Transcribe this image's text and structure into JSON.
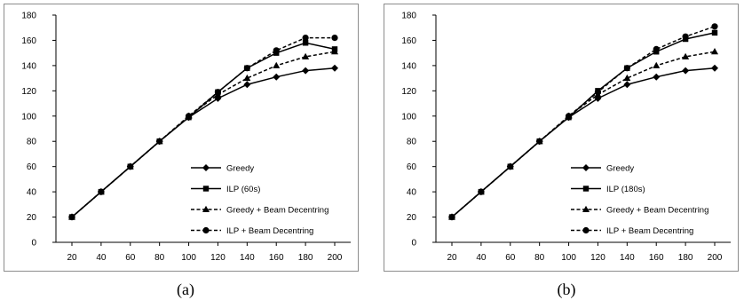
{
  "captions": [
    "(a)",
    "(b)"
  ],
  "chart_data": [
    {
      "type": "line",
      "x": [
        20,
        40,
        60,
        80,
        100,
        120,
        140,
        160,
        180,
        200
      ],
      "xlim": [
        20,
        200
      ],
      "ylim": [
        0,
        180
      ],
      "yticks": [
        0,
        20,
        40,
        60,
        80,
        100,
        120,
        140,
        160,
        180
      ],
      "xticks": [
        20,
        40,
        60,
        80,
        100,
        120,
        140,
        160,
        180,
        200
      ],
      "grid": false,
      "legend_position": "bottom-right",
      "series": [
        {
          "name": "Greedy",
          "marker": "diamond",
          "dash": "solid",
          "values": [
            20,
            40,
            60,
            80,
            99,
            114,
            125,
            131,
            136,
            138
          ]
        },
        {
          "name": "ILP (60s)",
          "marker": "square",
          "dash": "solid",
          "values": [
            20,
            40,
            60,
            80,
            99,
            119,
            138,
            150,
            158,
            153
          ]
        },
        {
          "name": "Greedy + Beam Decentring",
          "marker": "triangle",
          "dash": "dashed",
          "values": [
            20,
            40,
            60,
            80,
            100,
            117,
            130,
            140,
            147,
            151
          ]
        },
        {
          "name": "ILP + Beam Decentring",
          "marker": "circle",
          "dash": "dashed",
          "values": [
            20,
            40,
            60,
            80,
            100,
            119,
            138,
            152,
            162,
            162
          ]
        }
      ]
    },
    {
      "type": "line",
      "x": [
        20,
        40,
        60,
        80,
        100,
        120,
        140,
        160,
        180,
        200
      ],
      "xlim": [
        20,
        200
      ],
      "ylim": [
        0,
        180
      ],
      "yticks": [
        0,
        20,
        40,
        60,
        80,
        100,
        120,
        140,
        160,
        180
      ],
      "xticks": [
        20,
        40,
        60,
        80,
        100,
        120,
        140,
        160,
        180,
        200
      ],
      "grid": false,
      "legend_position": "bottom-right",
      "series": [
        {
          "name": "Greedy",
          "marker": "diamond",
          "dash": "solid",
          "values": [
            20,
            40,
            60,
            80,
            99,
            114,
            125,
            131,
            136,
            138
          ]
        },
        {
          "name": "ILP (180s)",
          "marker": "square",
          "dash": "solid",
          "values": [
            20,
            40,
            60,
            80,
            99,
            120,
            138,
            151,
            161,
            166
          ]
        },
        {
          "name": "Greedy + Beam Decentring",
          "marker": "triangle",
          "dash": "dashed",
          "values": [
            20,
            40,
            60,
            80,
            100,
            117,
            130,
            140,
            147,
            151
          ]
        },
        {
          "name": "ILP + Beam Decentring",
          "marker": "circle",
          "dash": "dashed",
          "values": [
            20,
            40,
            60,
            80,
            100,
            119,
            138,
            153,
            163,
            171
          ]
        }
      ]
    }
  ]
}
